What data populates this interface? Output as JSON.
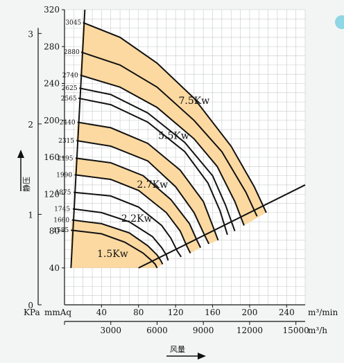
{
  "chart_data": {
    "type": "line",
    "y_kpa_ticks": [
      "0",
      "1",
      "2",
      "3"
    ],
    "y_kpa_values": [
      0,
      1,
      2,
      3
    ],
    "y_mmaq_ticks": [
      "40",
      "80",
      "120",
      "160",
      "200",
      "240",
      "280",
      "320"
    ],
    "y_mmaq_values": [
      40,
      80,
      120,
      160,
      200,
      240,
      280,
      320
    ],
    "y_units": [
      "KPa",
      "mmAq"
    ],
    "ylim": [
      0,
      320
    ],
    "x_min_ticks": [
      "40",
      "80",
      "120",
      "160",
      "200",
      "240"
    ],
    "x_min_values": [
      40,
      80,
      120,
      160,
      200,
      240
    ],
    "x_hour_ticks": [
      "3000",
      "6000",
      "9000",
      "12000",
      "15000"
    ],
    "x_hour_values": [
      3000,
      6000,
      9000,
      12000,
      15000
    ],
    "xlim": [
      0,
      260
    ],
    "x_unit_min": "m³/min",
    "x_unit_hour": "m³/h",
    "ylabel": "静压",
    "xlabel": "风量",
    "rpm_labels": [
      {
        "text": "3045",
        "y": 306
      },
      {
        "text": "2880",
        "y": 274
      },
      {
        "text": "2740",
        "y": 249
      },
      {
        "text": "2625",
        "y": 235
      },
      {
        "text": "2565",
        "y": 224
      },
      {
        "text": "2440",
        "y": 198
      },
      {
        "text": "2315",
        "y": 178
      },
      {
        "text": "2195",
        "y": 159
      },
      {
        "text": "1990",
        "y": 141
      },
      {
        "text": "1875",
        "y": 122
      },
      {
        "text": "1745",
        "y": 104
      },
      {
        "text": "1660",
        "y": 92
      },
      {
        "text": "1585",
        "y": 81
      }
    ],
    "series": [
      {
        "rpm": "3045",
        "points": [
          [
            20,
            306
          ],
          [
            60,
            290
          ],
          [
            100,
            262
          ],
          [
            140,
            224
          ],
          [
            180,
            172
          ],
          [
            205,
            128
          ],
          [
            218,
            100
          ]
        ]
      },
      {
        "rpm": "2880",
        "points": [
          [
            18,
            274
          ],
          [
            60,
            260
          ],
          [
            100,
            236
          ],
          [
            140,
            200
          ],
          [
            170,
            166
          ],
          [
            196,
            122
          ],
          [
            208,
            96
          ]
        ]
      },
      {
        "rpm": "2740",
        "points": [
          [
            17,
            249
          ],
          [
            60,
            236
          ],
          [
            100,
            214
          ],
          [
            140,
            180
          ],
          [
            165,
            150
          ],
          [
            184,
            112
          ],
          [
            194,
            86
          ]
        ]
      },
      {
        "rpm": "2625",
        "points": [
          [
            16,
            235
          ],
          [
            50,
            228
          ],
          [
            90,
            208
          ],
          [
            130,
            176
          ],
          [
            160,
            140
          ],
          [
            174,
            108
          ],
          [
            184,
            80
          ]
        ]
      },
      {
        "rpm": "2565",
        "points": [
          [
            15,
            224
          ],
          [
            50,
            217
          ],
          [
            90,
            198
          ],
          [
            130,
            166
          ],
          [
            155,
            132
          ],
          [
            168,
            102
          ],
          [
            176,
            76
          ]
        ]
      },
      {
        "rpm": "2440",
        "points": [
          [
            14,
            198
          ],
          [
            50,
            192
          ],
          [
            90,
            175
          ],
          [
            125,
            146
          ],
          [
            150,
            112
          ],
          [
            160,
            86
          ],
          [
            166,
            70
          ]
        ]
      },
      {
        "rpm": "2315",
        "points": [
          [
            13,
            178
          ],
          [
            50,
            172
          ],
          [
            90,
            156
          ],
          [
            120,
            128
          ],
          [
            140,
            100
          ],
          [
            152,
            74
          ],
          [
            156,
            66
          ]
        ]
      },
      {
        "rpm": "2195",
        "points": [
          [
            12,
            159
          ],
          [
            50,
            154
          ],
          [
            85,
            140
          ],
          [
            115,
            114
          ],
          [
            135,
            88
          ],
          [
            143,
            70
          ],
          [
            147,
            62
          ]
        ]
      },
      {
        "rpm": "1990",
        "points": [
          [
            11,
            141
          ],
          [
            50,
            136
          ],
          [
            80,
            124
          ],
          [
            110,
            100
          ],
          [
            125,
            80
          ],
          [
            132,
            64
          ],
          [
            136,
            56
          ]
        ]
      },
      {
        "rpm": "1875",
        "points": [
          [
            10,
            122
          ],
          [
            50,
            118
          ],
          [
            80,
            106
          ],
          [
            105,
            86
          ],
          [
            115,
            72
          ],
          [
            122,
            58
          ],
          [
            126,
            52
          ]
        ]
      },
      {
        "rpm": "1745",
        "points": [
          [
            9,
            104
          ],
          [
            40,
            100
          ],
          [
            70,
            90
          ],
          [
            95,
            74
          ],
          [
            105,
            62
          ],
          [
            110,
            54
          ],
          [
            112,
            48
          ]
        ]
      },
      {
        "rpm": "1660",
        "points": [
          [
            8,
            92
          ],
          [
            40,
            88
          ],
          [
            70,
            78
          ],
          [
            90,
            64
          ],
          [
            100,
            54
          ],
          [
            104,
            48
          ],
          [
            106,
            44
          ]
        ]
      },
      {
        "rpm": "1585",
        "points": [
          [
            7,
            81
          ],
          [
            40,
            77
          ],
          [
            65,
            68
          ],
          [
            85,
            56
          ],
          [
            94,
            48
          ],
          [
            98,
            44
          ],
          [
            100,
            40
          ]
        ]
      }
    ],
    "left_boundary": [
      [
        7,
        40
      ],
      [
        22,
        320
      ]
    ],
    "right_boundary": [
      [
        80,
        40
      ],
      [
        260,
        130
      ]
    ],
    "shaded_bands": [
      {
        "upper": "1660",
        "lower": "1585"
      },
      {
        "upper": "2195",
        "lower": "1990"
      },
      {
        "upper": "2440",
        "lower": "2315"
      },
      {
        "upper": "3045",
        "lower": "2740"
      }
    ],
    "shaded_bottom_band": "1585",
    "power_labels": [
      {
        "text": "1.5Kw",
        "x": 52,
        "y": 52
      },
      {
        "text": "2.2Kw",
        "x": 78,
        "y": 90
      },
      {
        "text": "2.7Kw",
        "x": 95,
        "y": 127
      },
      {
        "text": "5.5Kw",
        "x": 118,
        "y": 180
      },
      {
        "text": "7.5Kw",
        "x": 140,
        "y": 218
      }
    ],
    "fill_color": "#fbd9a1",
    "line_color": "#111111",
    "grid": true
  }
}
